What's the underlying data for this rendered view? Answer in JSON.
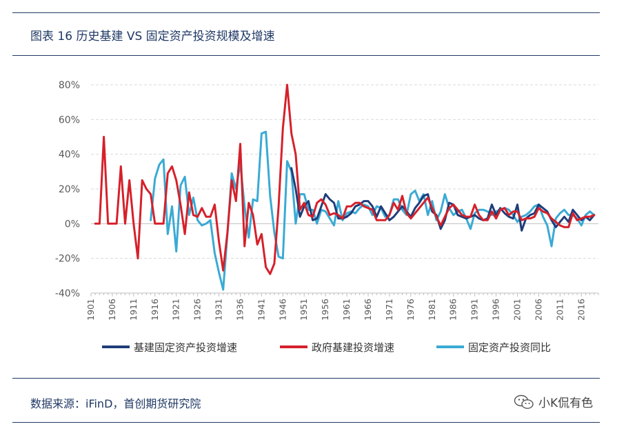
{
  "header": {
    "title": "图表 16 历史基建 VS 固定资产投资规模及增速"
  },
  "footer": {
    "source": "数据来源：iFinD，首创期货研究院",
    "brand_name": "小K侃有色",
    "brand_icon": "wechat-icon"
  },
  "chart_data": {
    "type": "line",
    "title": "",
    "xlabel": "",
    "ylabel": "",
    "x_start": 1901,
    "x_end": 2020,
    "xticks": [
      1901,
      1906,
      1911,
      1916,
      1921,
      1926,
      1931,
      1936,
      1941,
      1946,
      1951,
      1956,
      1961,
      1966,
      1971,
      1976,
      1981,
      1986,
      1991,
      1996,
      2001,
      2006,
      2011,
      2016
    ],
    "yticks": [
      -0.4,
      -0.2,
      0,
      0.2,
      0.4,
      0.6,
      0.8
    ],
    "ytick_labels": [
      "-40%",
      "-20%",
      "0%",
      "20%",
      "40%",
      "60%",
      "80%"
    ],
    "ylim": [
      -0.4,
      0.8
    ],
    "grid": "horizontal-dashed",
    "legend_position": "bottom",
    "series": [
      {
        "name": "基建固定资产投资增速",
        "color": "#1f3d7a",
        "points": [
          [
            1948,
            0.32
          ],
          [
            1949,
            0.2
          ],
          [
            1950,
            0.04
          ],
          [
            1951,
            0.1
          ],
          [
            1952,
            0.13
          ],
          [
            1953,
            0.02
          ],
          [
            1954,
            0.03
          ],
          [
            1955,
            0.1
          ],
          [
            1956,
            0.17
          ],
          [
            1957,
            0.14
          ],
          [
            1958,
            0.12
          ],
          [
            1959,
            0.03
          ],
          [
            1960,
            0.03
          ],
          [
            1961,
            0.04
          ],
          [
            1962,
            0.06
          ],
          [
            1963,
            0.1
          ],
          [
            1964,
            0.11
          ],
          [
            1965,
            0.13
          ],
          [
            1966,
            0.13
          ],
          [
            1967,
            0.1
          ],
          [
            1968,
            0.04
          ],
          [
            1969,
            0.1
          ],
          [
            1970,
            0.06
          ],
          [
            1971,
            0.02
          ],
          [
            1972,
            0.04
          ],
          [
            1973,
            0.07
          ],
          [
            1974,
            0.1
          ],
          [
            1975,
            0.07
          ],
          [
            1976,
            0.04
          ],
          [
            1977,
            0.09
          ],
          [
            1978,
            0.12
          ],
          [
            1979,
            0.16
          ],
          [
            1980,
            0.17
          ],
          [
            1981,
            0.07
          ],
          [
            1982,
            0.05
          ],
          [
            1983,
            -0.03
          ],
          [
            1984,
            0.02
          ],
          [
            1985,
            0.12
          ],
          [
            1986,
            0.11
          ],
          [
            1987,
            0.05
          ],
          [
            1988,
            0.04
          ],
          [
            1989,
            0.03
          ],
          [
            1990,
            0.04
          ],
          [
            1991,
            0.05
          ],
          [
            1992,
            0.03
          ],
          [
            1993,
            0.02
          ],
          [
            1994,
            0.03
          ],
          [
            1995,
            0.11
          ],
          [
            1996,
            0.05
          ],
          [
            1997,
            0.09
          ],
          [
            1998,
            0.06
          ],
          [
            1999,
            0.04
          ],
          [
            2000,
            0.03
          ],
          [
            2001,
            0.11
          ],
          [
            2002,
            -0.04
          ],
          [
            2003,
            0.03
          ],
          [
            2004,
            0.05
          ],
          [
            2005,
            0.06
          ],
          [
            2006,
            0.11
          ],
          [
            2007,
            0.09
          ],
          [
            2008,
            0.07
          ],
          [
            2009,
            0.02
          ],
          [
            2010,
            -0.02
          ],
          [
            2011,
            0.01
          ],
          [
            2012,
            0.04
          ],
          [
            2013,
            0.01
          ],
          [
            2014,
            0.08
          ],
          [
            2015,
            0.05
          ],
          [
            2016,
            0.02
          ],
          [
            2017,
            0.04
          ],
          [
            2018,
            0.02
          ],
          [
            2019,
            0.05
          ]
        ]
      },
      {
        "name": "政府基建投资增速",
        "color": "#d6202a",
        "points": [
          [
            1902,
            0.0
          ],
          [
            1903,
            0.0
          ],
          [
            1904,
            0.5
          ],
          [
            1905,
            0.0
          ],
          [
            1906,
            0.0
          ],
          [
            1907,
            0.0
          ],
          [
            1908,
            0.33
          ],
          [
            1909,
            0.0
          ],
          [
            1910,
            0.25
          ],
          [
            1911,
            0.0
          ],
          [
            1912,
            -0.2
          ],
          [
            1913,
            0.25
          ],
          [
            1914,
            0.2
          ],
          [
            1915,
            0.17
          ],
          [
            1916,
            0.0
          ],
          [
            1917,
            0.0
          ],
          [
            1918,
            0.0
          ],
          [
            1919,
            0.29
          ],
          [
            1920,
            0.33
          ],
          [
            1921,
            0.25
          ],
          [
            1922,
            0.11
          ],
          [
            1923,
            -0.06
          ],
          [
            1924,
            0.18
          ],
          [
            1925,
            0.05
          ],
          [
            1926,
            0.04
          ],
          [
            1927,
            0.09
          ],
          [
            1928,
            0.04
          ],
          [
            1929,
            0.04
          ],
          [
            1930,
            0.11
          ],
          [
            1931,
            -0.1
          ],
          [
            1932,
            -0.27
          ],
          [
            1933,
            -0.05
          ],
          [
            1934,
            0.25
          ],
          [
            1935,
            0.13
          ],
          [
            1936,
            0.46
          ],
          [
            1937,
            -0.13
          ],
          [
            1938,
            0.12
          ],
          [
            1939,
            0.05
          ],
          [
            1940,
            -0.12
          ],
          [
            1941,
            -0.06
          ],
          [
            1942,
            -0.25
          ],
          [
            1943,
            -0.29
          ],
          [
            1944,
            -0.23
          ],
          [
            1945,
            0.1
          ],
          [
            1946,
            0.55
          ],
          [
            1947,
            0.8
          ],
          [
            1948,
            0.52
          ],
          [
            1949,
            0.4
          ],
          [
            1950,
            0.08
          ],
          [
            1951,
            0.12
          ],
          [
            1952,
            0.05
          ],
          [
            1953,
            0.04
          ],
          [
            1954,
            0.12
          ],
          [
            1955,
            0.14
          ],
          [
            1956,
            0.11
          ],
          [
            1957,
            0.05
          ],
          [
            1958,
            0.06
          ],
          [
            1959,
            0.05
          ],
          [
            1960,
            0.03
          ],
          [
            1961,
            0.1
          ],
          [
            1962,
            0.1
          ],
          [
            1963,
            0.12
          ],
          [
            1964,
            0.12
          ],
          [
            1965,
            0.1
          ],
          [
            1966,
            0.09
          ],
          [
            1967,
            0.08
          ],
          [
            1968,
            0.02
          ],
          [
            1969,
            0.02
          ],
          [
            1970,
            0.02
          ],
          [
            1971,
            0.05
          ],
          [
            1972,
            0.12
          ],
          [
            1973,
            0.08
          ],
          [
            1974,
            0.16
          ],
          [
            1975,
            0.06
          ],
          [
            1976,
            0.03
          ],
          [
            1977,
            0.06
          ],
          [
            1978,
            0.09
          ],
          [
            1979,
            0.12
          ],
          [
            1980,
            0.15
          ],
          [
            1981,
            0.09
          ],
          [
            1982,
            0.04
          ],
          [
            1983,
            -0.01
          ],
          [
            1984,
            0.04
          ],
          [
            1985,
            0.09
          ],
          [
            1986,
            0.11
          ],
          [
            1987,
            0.08
          ],
          [
            1988,
            0.05
          ],
          [
            1989,
            0.04
          ],
          [
            1990,
            0.04
          ],
          [
            1991,
            0.11
          ],
          [
            1992,
            0.05
          ],
          [
            1993,
            0.02
          ],
          [
            1994,
            0.02
          ],
          [
            1995,
            0.07
          ],
          [
            1996,
            0.03
          ],
          [
            1997,
            0.08
          ],
          [
            1998,
            0.09
          ],
          [
            1999,
            0.05
          ],
          [
            2000,
            0.07
          ],
          [
            2001,
            0.07
          ],
          [
            2002,
            0.02
          ],
          [
            2003,
            0.03
          ],
          [
            2004,
            0.03
          ],
          [
            2005,
            0.04
          ],
          [
            2006,
            0.09
          ],
          [
            2007,
            0.07
          ],
          [
            2008,
            0.06
          ],
          [
            2009,
            0.03
          ],
          [
            2010,
            0.01
          ],
          [
            2011,
            -0.01
          ],
          [
            2012,
            -0.02
          ],
          [
            2013,
            -0.02
          ],
          [
            2014,
            0.06
          ],
          [
            2015,
            0.02
          ],
          [
            2016,
            0.03
          ],
          [
            2017,
            0.04
          ],
          [
            2018,
            0.04
          ],
          [
            2019,
            0.05
          ]
        ]
      },
      {
        "name": "固定资产投资同比",
        "color": "#3aaad4",
        "points": [
          [
            1915,
            0.02
          ],
          [
            1916,
            0.26
          ],
          [
            1917,
            0.34
          ],
          [
            1918,
            0.37
          ],
          [
            1919,
            -0.06
          ],
          [
            1920,
            0.1
          ],
          [
            1921,
            -0.16
          ],
          [
            1922,
            0.22
          ],
          [
            1923,
            0.27
          ],
          [
            1924,
            0.05
          ],
          [
            1925,
            0.15
          ],
          [
            1926,
            0.02
          ],
          [
            1927,
            -0.01
          ],
          [
            1928,
            0.0
          ],
          [
            1929,
            0.02
          ],
          [
            1930,
            -0.17
          ],
          [
            1931,
            -0.28
          ],
          [
            1932,
            -0.38
          ],
          [
            1933,
            -0.06
          ],
          [
            1934,
            0.29
          ],
          [
            1935,
            0.2
          ],
          [
            1936,
            0.35
          ],
          [
            1937,
            0.1
          ],
          [
            1938,
            -0.08
          ],
          [
            1939,
            0.14
          ],
          [
            1940,
            0.13
          ],
          [
            1941,
            0.52
          ],
          [
            1942,
            0.53
          ],
          [
            1943,
            0.16
          ],
          [
            1944,
            -0.05
          ],
          [
            1945,
            -0.19
          ],
          [
            1946,
            -0.2
          ],
          [
            1947,
            0.36
          ],
          [
            1948,
            0.3
          ],
          [
            1949,
            0.0
          ],
          [
            1950,
            0.17
          ],
          [
            1951,
            0.17
          ],
          [
            1952,
            0.08
          ],
          [
            1953,
            0.08
          ],
          [
            1954,
            0.0
          ],
          [
            1955,
            0.08
          ],
          [
            1956,
            0.07
          ],
          [
            1957,
            0.03
          ],
          [
            1958,
            -0.01
          ],
          [
            1959,
            0.13
          ],
          [
            1960,
            0.02
          ],
          [
            1961,
            0.06
          ],
          [
            1962,
            0.07
          ],
          [
            1963,
            0.06
          ],
          [
            1964,
            0.09
          ],
          [
            1965,
            0.11
          ],
          [
            1966,
            0.1
          ],
          [
            1967,
            0.05
          ],
          [
            1968,
            0.1
          ],
          [
            1969,
            0.09
          ],
          [
            1970,
            0.04
          ],
          [
            1971,
            0.05
          ],
          [
            1972,
            0.14
          ],
          [
            1973,
            0.14
          ],
          [
            1974,
            0.08
          ],
          [
            1975,
            0.05
          ],
          [
            1976,
            0.17
          ],
          [
            1977,
            0.19
          ],
          [
            1978,
            0.13
          ],
          [
            1979,
            0.17
          ],
          [
            1980,
            0.05
          ],
          [
            1981,
            0.13
          ],
          [
            1982,
            0.02
          ],
          [
            1983,
            0.07
          ],
          [
            1984,
            0.17
          ],
          [
            1985,
            0.09
          ],
          [
            1986,
            0.05
          ],
          [
            1987,
            0.07
          ],
          [
            1988,
            0.08
          ],
          [
            1989,
            0.03
          ],
          [
            1990,
            -0.03
          ],
          [
            1991,
            0.06
          ],
          [
            1992,
            0.08
          ],
          [
            1993,
            0.08
          ],
          [
            1994,
            0.07
          ],
          [
            1995,
            0.05
          ],
          [
            1996,
            0.07
          ],
          [
            1997,
            0.08
          ],
          [
            1998,
            0.09
          ],
          [
            1999,
            0.08
          ],
          [
            2000,
            0.05
          ],
          [
            2001,
            0.01
          ],
          [
            2002,
            0.04
          ],
          [
            2003,
            0.05
          ],
          [
            2004,
            0.07
          ],
          [
            2005,
            0.1
          ],
          [
            2006,
            0.11
          ],
          [
            2007,
            0.04
          ],
          [
            2008,
            -0.01
          ],
          [
            2009,
            -0.13
          ],
          [
            2010,
            0.03
          ],
          [
            2011,
            0.06
          ],
          [
            2012,
            0.08
          ],
          [
            2013,
            0.05
          ],
          [
            2014,
            0.05
          ],
          [
            2015,
            0.03
          ],
          [
            2016,
            -0.01
          ],
          [
            2017,
            0.05
          ],
          [
            2018,
            0.07
          ],
          [
            2019,
            0.05
          ]
        ]
      }
    ]
  }
}
